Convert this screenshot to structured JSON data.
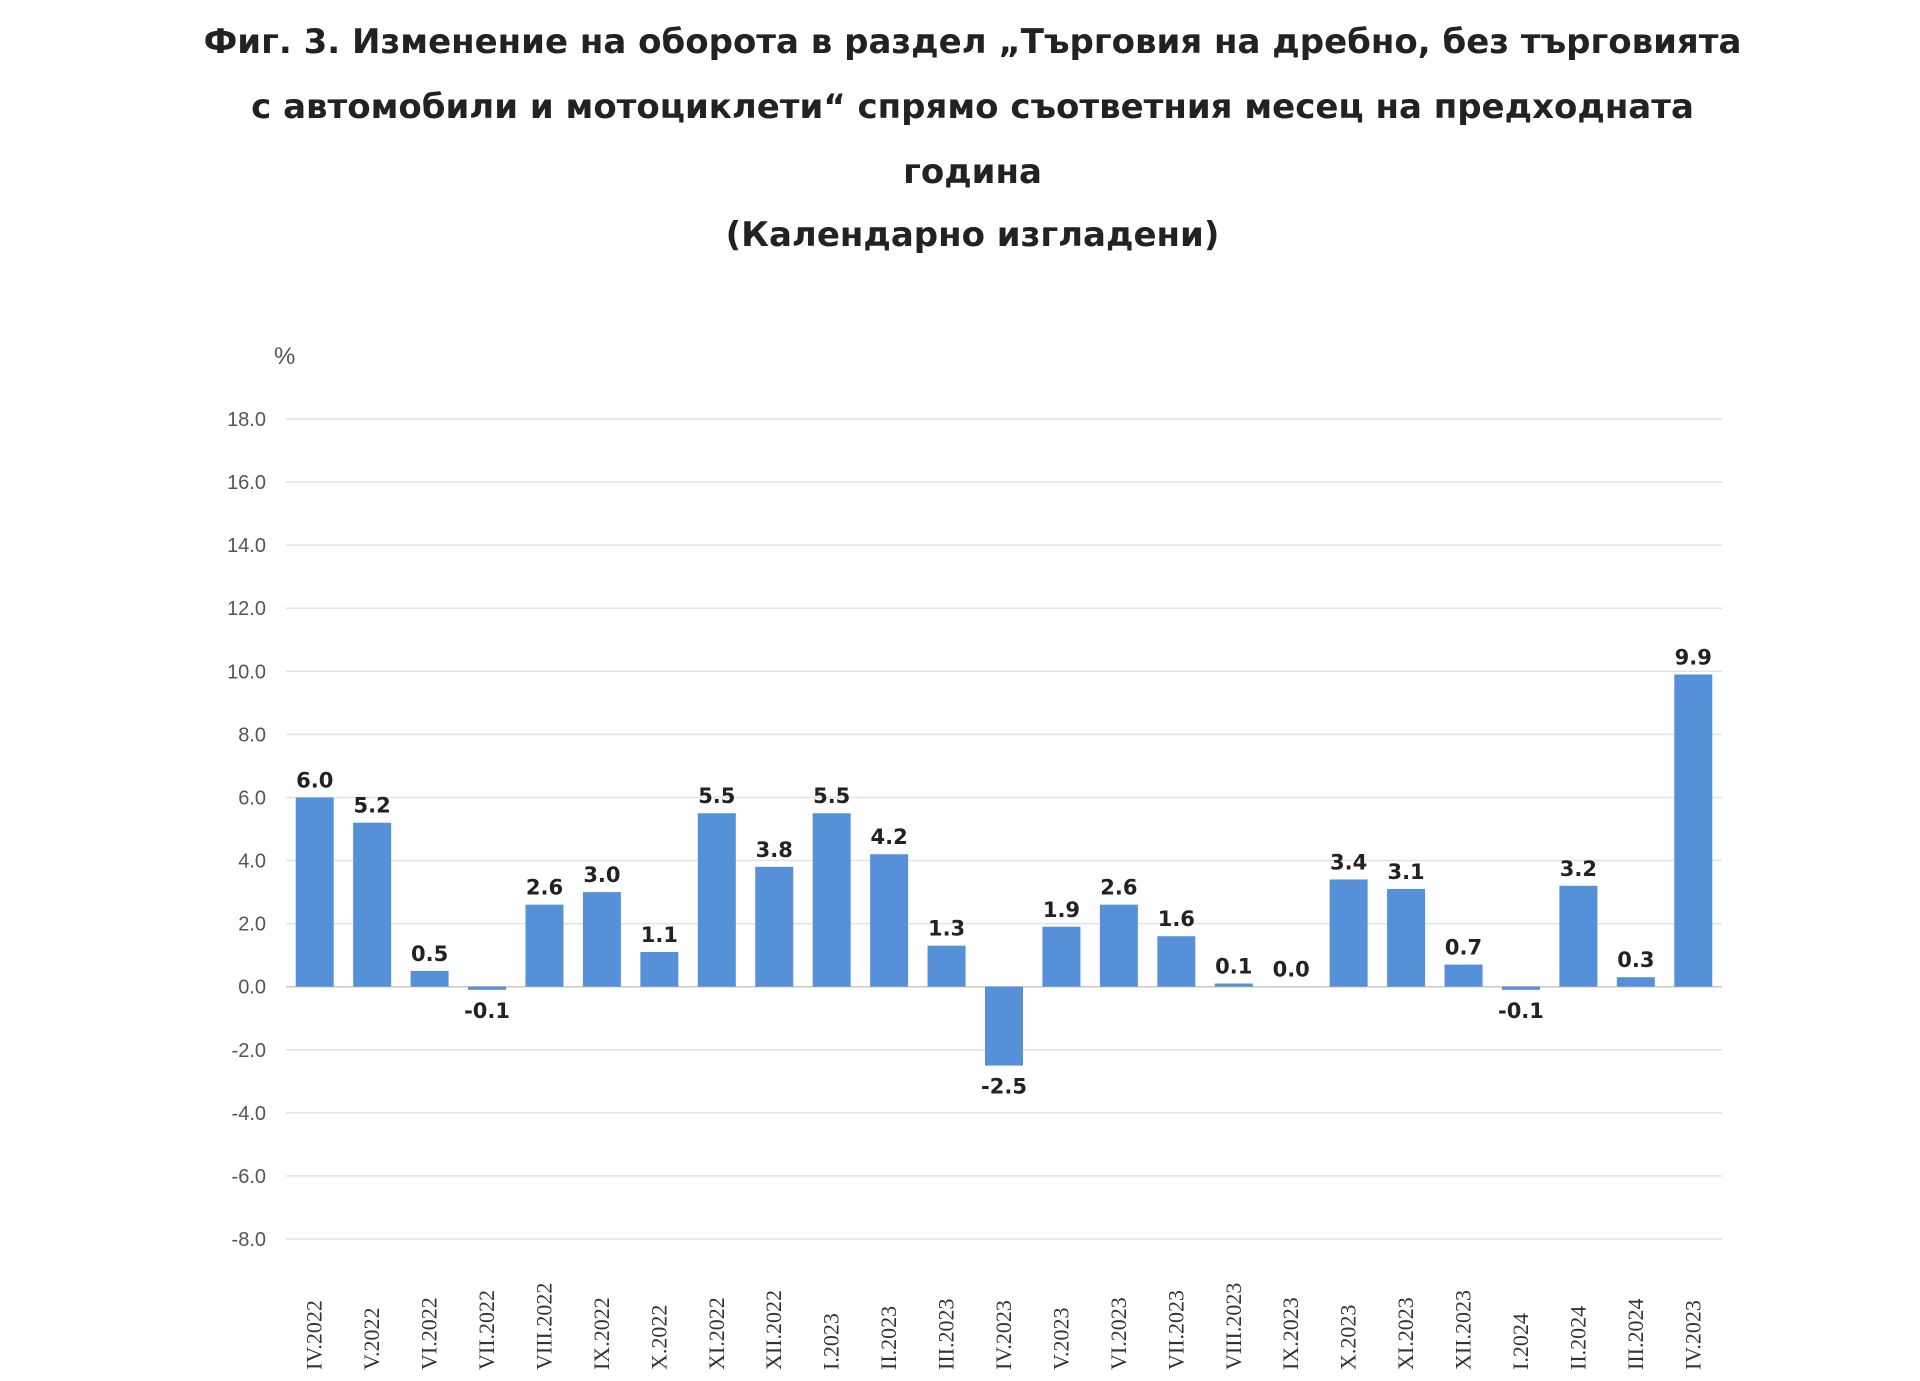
{
  "chart_data": {
    "type": "bar",
    "title_lines": [
      "Фиг. 3. Изменение на оборота в раздел „Търговия на дребно, без търговията",
      "с автомобили и мотоциклети“ спрямо съответния месец на предходната",
      "година"
    ],
    "subtitle": "(Календарно изгладени)",
    "ylabel": "%",
    "ylim": [
      -8.0,
      18.0
    ],
    "yticks": [
      "18.0",
      "16.0",
      "14.0",
      "12.0",
      "10.0",
      "8.0",
      "6.0",
      "4.0",
      "2.0",
      "0.0",
      "-2.0",
      "-4.0",
      "-6.0",
      "-8.0"
    ],
    "ytick_values": [
      18,
      16,
      14,
      12,
      10,
      8,
      6,
      4,
      2,
      0,
      -2,
      -4,
      -6,
      -8
    ],
    "grid": true,
    "bar_color": "#5590d9",
    "categories": [
      "IV.2022",
      "V.2022",
      "VI.2022",
      "VII.2022",
      "VIII.2022",
      "IX.2022",
      "X.2022",
      "XI.2022",
      "XII.2022",
      "I.2023",
      "II.2023",
      "III.2023",
      "IV.2023",
      "V.2023",
      "VI.2023",
      "VII.2023",
      "VIII.2023",
      "IX.2023",
      "X.2023",
      "XI.2023",
      "XII.2023",
      "I.2024",
      "II.2024",
      "III.2024",
      "IV.2023"
    ],
    "values": [
      6.0,
      5.2,
      0.5,
      -0.1,
      2.6,
      3.0,
      1.1,
      5.5,
      3.8,
      5.5,
      4.2,
      1.3,
      -2.5,
      1.9,
      2.6,
      1.6,
      0.1,
      0.0,
      3.4,
      3.1,
      0.7,
      -0.1,
      3.2,
      0.3,
      9.9
    ],
    "value_labels": [
      "6.0",
      "5.2",
      "0.5",
      "-0.1",
      "2.6",
      "3.0",
      "1.1",
      "5.5",
      "3.8",
      "5.5",
      "4.2",
      "1.3",
      "-2.5",
      "1.9",
      "2.6",
      "1.6",
      "0.1",
      "0.0",
      "3.4",
      "3.1",
      "0.7",
      "-0.1",
      "3.2",
      "0.3",
      "9.9"
    ]
  }
}
